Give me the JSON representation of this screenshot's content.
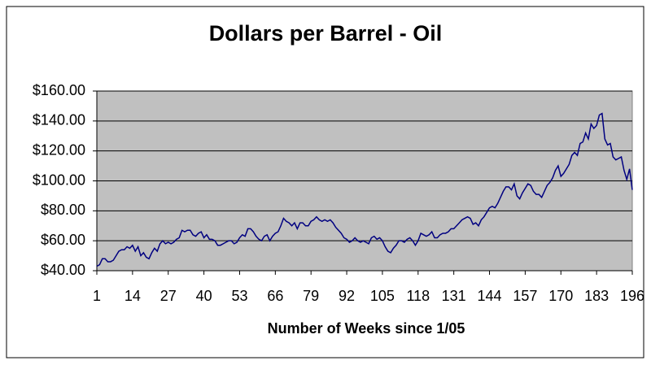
{
  "chart_data": {
    "type": "line",
    "title": "Dollars per Barrel - Oil",
    "x_label": "Number of Weeks since 1/05",
    "x": [
      1,
      2,
      3,
      4,
      5,
      6,
      7,
      8,
      9,
      10,
      11,
      12,
      13,
      14,
      15,
      16,
      17,
      18,
      19,
      20,
      21,
      22,
      23,
      24,
      25,
      26,
      27,
      28,
      29,
      30,
      31,
      32,
      33,
      34,
      35,
      36,
      37,
      38,
      39,
      40,
      41,
      42,
      43,
      44,
      45,
      46,
      47,
      48,
      49,
      50,
      51,
      52,
      53,
      54,
      55,
      56,
      57,
      58,
      59,
      60,
      61,
      62,
      63,
      64,
      65,
      66,
      67,
      68,
      69,
      70,
      71,
      72,
      73,
      74,
      75,
      76,
      77,
      78,
      79,
      80,
      81,
      82,
      83,
      84,
      85,
      86,
      87,
      88,
      89,
      90,
      91,
      92,
      93,
      94,
      95,
      96,
      97,
      98,
      99,
      100,
      101,
      102,
      103,
      104,
      105,
      106,
      107,
      108,
      109,
      110,
      111,
      112,
      113,
      114,
      115,
      116,
      117,
      118,
      119,
      120,
      121,
      122,
      123,
      124,
      125,
      126,
      127,
      128,
      129,
      130,
      131,
      132,
      133,
      134,
      135,
      136,
      137,
      138,
      139,
      140,
      141,
      142,
      143,
      144,
      145,
      146,
      147,
      148,
      149,
      150,
      151,
      152,
      153,
      154,
      155,
      156,
      157,
      158,
      159,
      160,
      161,
      162,
      163,
      164,
      165,
      166,
      167,
      168,
      169,
      170,
      171,
      172,
      173,
      174,
      175,
      176,
      177,
      178,
      179,
      180,
      181,
      182,
      183,
      184,
      185,
      186,
      187,
      188,
      189,
      190,
      191,
      192,
      193,
      194,
      195,
      196
    ],
    "series": [
      {
        "color": "#000080",
        "values": [
          43,
          44,
          48,
          48,
          46,
          46,
          47,
          50,
          53,
          54,
          54,
          56,
          55,
          57,
          53,
          56,
          50,
          52,
          49,
          48,
          52,
          55,
          53,
          58,
          60,
          58,
          59,
          58,
          59,
          61,
          62,
          67,
          66,
          67,
          67,
          64,
          63,
          65,
          66,
          62,
          64,
          61,
          61,
          60,
          57,
          57,
          58,
          59,
          60,
          60,
          58,
          59,
          62,
          64,
          63,
          68,
          68,
          66,
          63,
          61,
          60,
          63,
          64,
          60,
          63,
          65,
          66,
          70,
          75,
          73,
          72,
          70,
          72,
          68,
          72,
          72,
          70,
          70,
          73,
          74,
          76,
          74,
          73,
          74,
          73,
          74,
          72,
          69,
          67,
          65,
          62,
          61,
          59,
          60,
          62,
          60,
          59,
          60,
          59,
          58,
          62,
          63,
          61,
          62,
          60,
          56,
          53,
          52,
          55,
          57,
          60,
          60,
          59,
          61,
          62,
          60,
          57,
          60,
          65,
          64,
          63,
          64,
          66,
          62,
          62,
          64,
          65,
          65,
          66,
          68,
          68,
          70,
          72,
          74,
          75,
          76,
          75,
          71,
          72,
          70,
          74,
          76,
          79,
          82,
          83,
          82,
          85,
          89,
          93,
          96,
          96,
          94,
          98,
          90,
          88,
          92,
          95,
          98,
          97,
          93,
          91,
          91,
          89,
          93,
          97,
          99,
          102,
          107,
          110,
          103,
          105,
          108,
          111,
          117,
          119,
          117,
          125,
          126,
          132,
          128,
          138,
          135,
          137,
          144,
          145,
          128,
          124,
          125,
          116,
          114,
          115,
          116,
          107,
          101,
          108,
          94
        ]
      }
    ],
    "xlim": [
      1,
      196
    ],
    "xticks": [
      1,
      14,
      27,
      40,
      53,
      66,
      79,
      92,
      105,
      118,
      131,
      144,
      157,
      170,
      183,
      196
    ],
    "ylim": [
      40,
      160
    ],
    "yticks": [
      {
        "value": 40,
        "label": "$40.00"
      },
      {
        "value": 60,
        "label": "$60.00"
      },
      {
        "value": 80,
        "label": "$80.00"
      },
      {
        "value": 100,
        "label": "$100.00"
      },
      {
        "value": 120,
        "label": "$120.00"
      },
      {
        "value": 140,
        "label": "$140.00"
      },
      {
        "value": 160,
        "label": "$160.00"
      }
    ],
    "grid": true,
    "plot_background": "#c0c0c0"
  }
}
